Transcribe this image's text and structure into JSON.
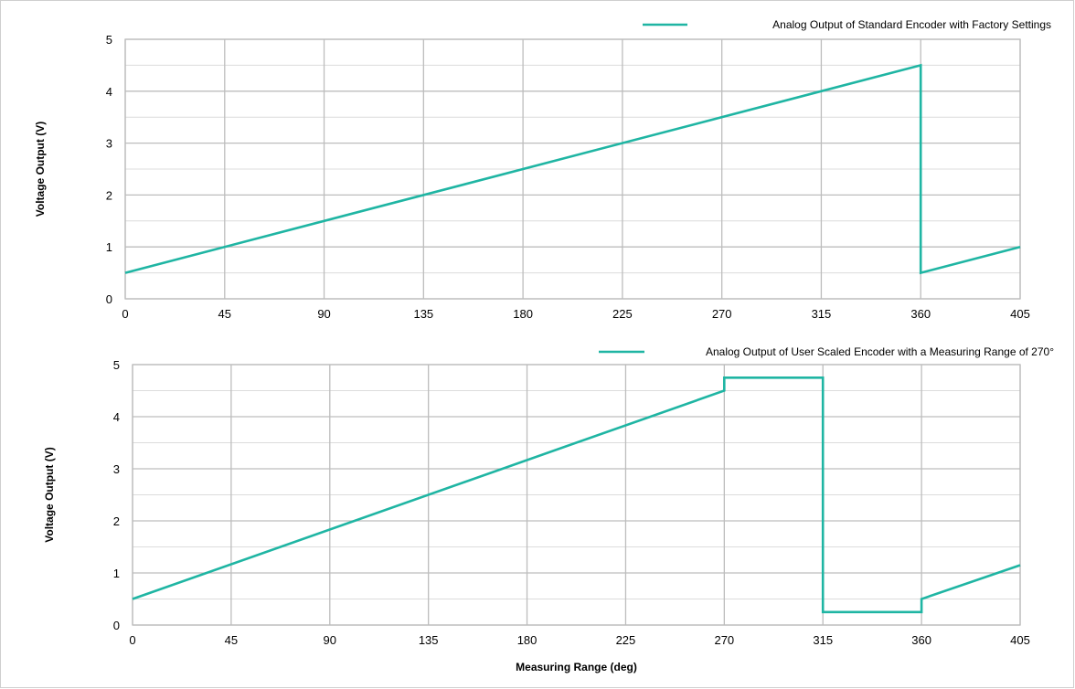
{
  "chart_data": [
    {
      "type": "line",
      "title": "",
      "xlabel": "",
      "ylabel": "Voltage Output (V)",
      "xlim": [
        0,
        405
      ],
      "ylim": [
        0,
        5
      ],
      "x_ticks": [
        0,
        45,
        90,
        135,
        180,
        225,
        270,
        315,
        360,
        405
      ],
      "y_ticks": [
        0,
        1,
        2,
        3,
        4,
        5
      ],
      "grid": true,
      "legend_position": "top-right",
      "series": [
        {
          "name": "Analog Output of Standard Encoder with Factory Settings",
          "color": "#1fb5a3",
          "points": [
            [
              0,
              0.5
            ],
            [
              360,
              4.5
            ],
            [
              360,
              0.5
            ],
            [
              405,
              1.0
            ]
          ]
        }
      ]
    },
    {
      "type": "line",
      "title": "",
      "xlabel": "Measuring Range (deg)",
      "ylabel": "Voltage Output (V)",
      "xlim": [
        0,
        405
      ],
      "ylim": [
        0,
        5
      ],
      "x_ticks": [
        0,
        45,
        90,
        135,
        180,
        225,
        270,
        315,
        360,
        405
      ],
      "y_ticks": [
        0,
        1,
        2,
        3,
        4,
        5
      ],
      "grid": true,
      "legend_position": "top-right",
      "series": [
        {
          "name": "Analog Output of User Scaled Encoder with a Measuring Range of 270°",
          "color": "#1fb5a3",
          "points": [
            [
              0,
              0.5
            ],
            [
              270,
              4.5
            ],
            [
              270,
              4.75
            ],
            [
              315,
              4.75
            ],
            [
              315,
              0.25
            ],
            [
              360,
              0.25
            ],
            [
              360,
              0.5
            ],
            [
              405,
              1.15
            ]
          ]
        }
      ]
    }
  ]
}
